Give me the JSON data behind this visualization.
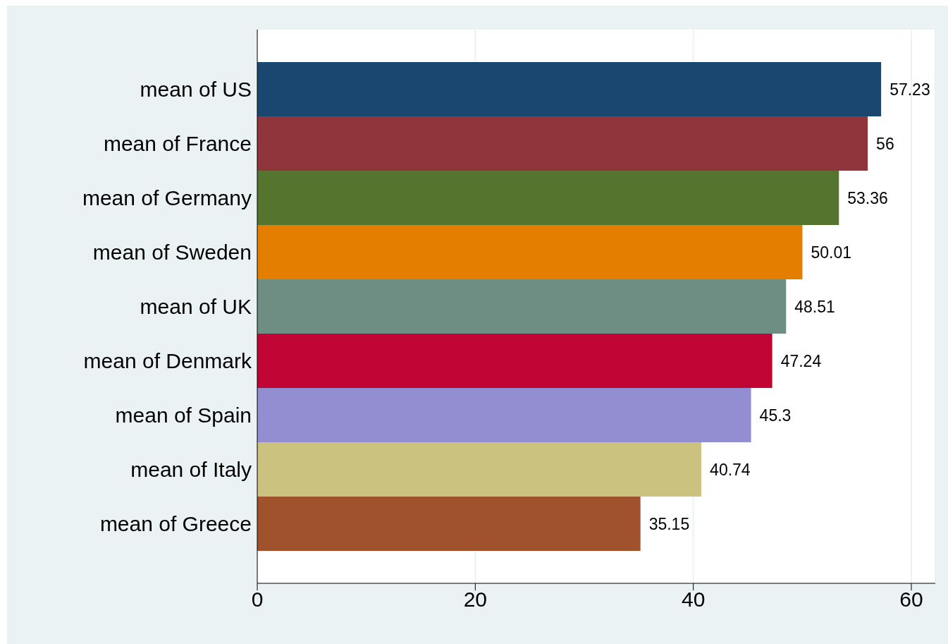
{
  "chart_data": {
    "type": "bar",
    "orientation": "horizontal",
    "categories": [
      "mean of US",
      "mean of France",
      "mean of Germany",
      "mean of Sweden",
      "mean of UK",
      "mean of Denmark",
      "mean of Spain",
      "mean of Italy",
      "mean of Greece"
    ],
    "values": [
      57.23,
      56,
      53.36,
      50.01,
      48.51,
      47.24,
      45.3,
      40.74,
      35.15
    ],
    "colors": [
      "#1a476f",
      "#90353b",
      "#55752f",
      "#e37e00",
      "#6e8e84",
      "#c10534",
      "#938dd2",
      "#cac27e",
      "#a0522d"
    ],
    "xlim": [
      0,
      62.2
    ],
    "xticks": [
      0,
      20,
      40,
      60
    ],
    "grid": "x",
    "data_labels": true,
    "legend": false
  }
}
